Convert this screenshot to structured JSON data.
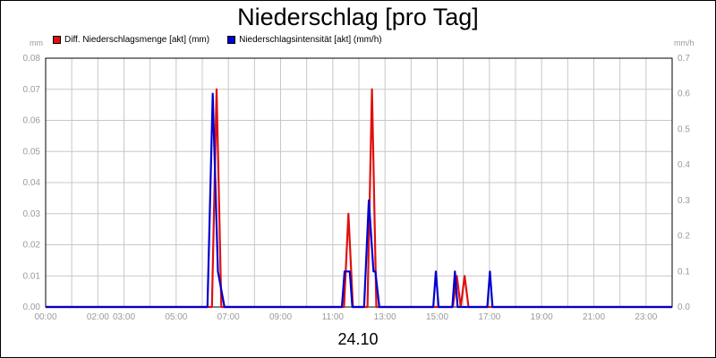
{
  "title": "Niederschlag [pro Tag]",
  "date_label": "24.10",
  "left_unit": "mm",
  "right_unit": "mm/h",
  "colors": {
    "series_red": "#e01010",
    "series_blue": "#0000d0",
    "grid": "#c8c8c8",
    "tick_text": "#9a9a9a"
  },
  "legend": [
    {
      "label": "Diff. Niederschlagsmenge [akt] (mm)",
      "color": "#e01010"
    },
    {
      "label": "Niederschlagsintensität [akt] (mm/h)",
      "color": "#0000d0"
    }
  ],
  "chart_data": {
    "type": "line",
    "x_unit": "hours",
    "xlim": [
      0,
      24
    ],
    "x_ticks": [
      {
        "value": 0,
        "label": "00:00"
      },
      {
        "value": 2,
        "label": "02:00"
      },
      {
        "value": 3,
        "label": "03:00"
      },
      {
        "value": 5,
        "label": "05:00"
      },
      {
        "value": 7,
        "label": "07:00"
      },
      {
        "value": 9,
        "label": "09:00"
      },
      {
        "value": 11,
        "label": "11:00"
      },
      {
        "value": 13,
        "label": "13:00"
      },
      {
        "value": 15,
        "label": "15:00"
      },
      {
        "value": 17,
        "label": "17:00"
      },
      {
        "value": 19,
        "label": "19:00"
      },
      {
        "value": 21,
        "label": "21:00"
      },
      {
        "value": 23,
        "label": "23:00"
      }
    ],
    "y_left": {
      "lim": [
        0,
        0.08
      ],
      "ticks": [
        "0.00",
        "0.01",
        "0.02",
        "0.03",
        "0.04",
        "0.05",
        "0.06",
        "0.07",
        "0.08"
      ]
    },
    "y_right": {
      "lim": [
        0,
        0.7
      ],
      "ticks": [
        "0.0",
        "0.1",
        "0.2",
        "0.3",
        "0.4",
        "0.5",
        "0.6",
        "0.7"
      ]
    },
    "grid": true,
    "series": [
      {
        "name": "Diff. Niederschlagsmenge [akt] (mm)",
        "axis": "left",
        "color": "#e01010",
        "x": [
          0,
          6.37,
          6.55,
          6.73,
          11.43,
          11.6,
          11.77,
          12.33,
          12.5,
          12.67,
          15.6,
          15.75,
          15.9,
          16.05,
          16.2,
          24
        ],
        "y": [
          0,
          0,
          0.07,
          0,
          0,
          0.03,
          0,
          0,
          0.07,
          0,
          0,
          0.01,
          0,
          0.01,
          0,
          0
        ]
      },
      {
        "name": "Niederschlagsintensität [akt] (mm/h)",
        "axis": "right",
        "color": "#0000d0",
        "x": [
          0,
          6.2,
          6.4,
          6.6,
          6.85,
          11.35,
          11.45,
          11.65,
          11.75,
          12.2,
          12.38,
          12.56,
          12.63,
          12.78,
          14.85,
          14.95,
          15.05,
          15.58,
          15.68,
          15.78,
          16.92,
          17.02,
          17.12,
          24
        ],
        "y": [
          0,
          0,
          0.6,
          0.1,
          0,
          0,
          0.1,
          0.1,
          0,
          0,
          0.3,
          0.1,
          0.1,
          0,
          0,
          0.1,
          0,
          0,
          0.1,
          0,
          0,
          0.1,
          0,
          0
        ]
      }
    ]
  }
}
